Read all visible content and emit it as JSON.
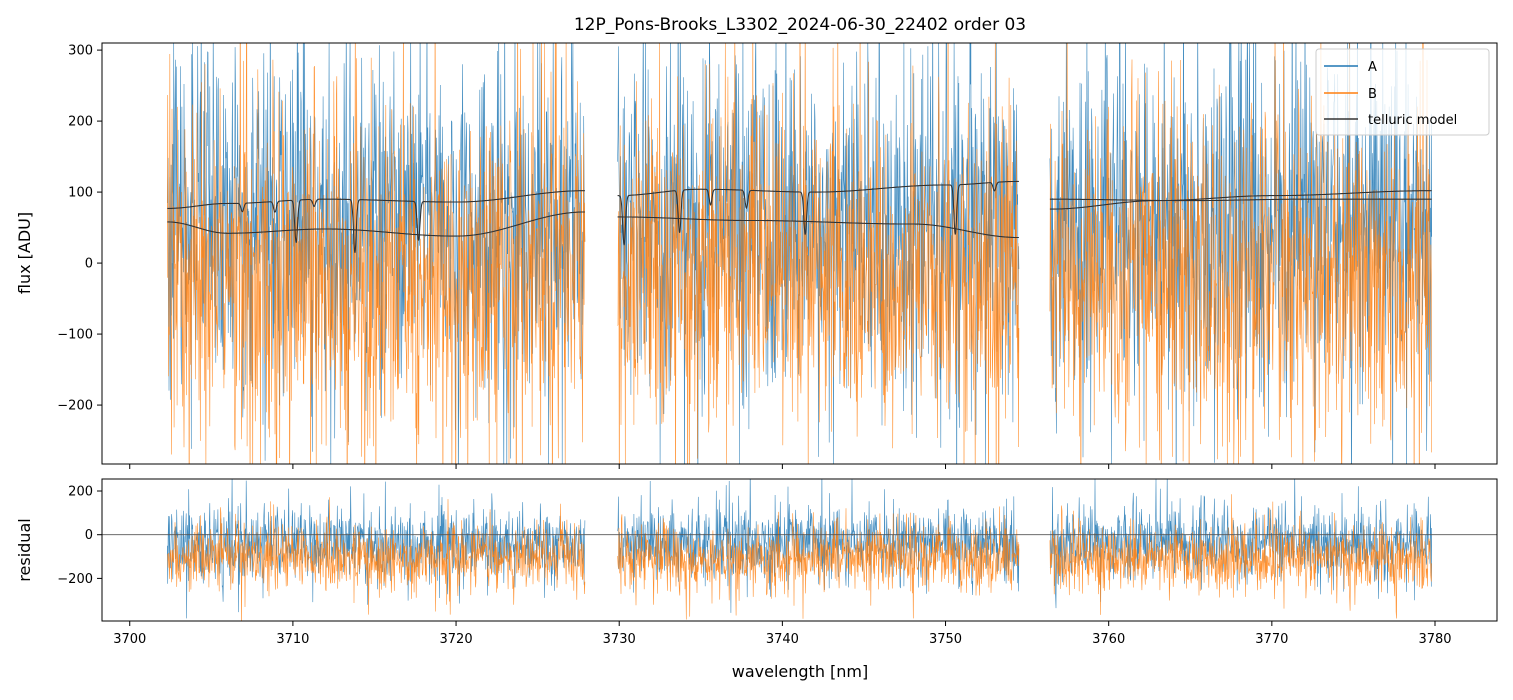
{
  "chart_data": [
    {
      "type": "line",
      "panel": "top",
      "title": "12P_Pons-Brooks_L3302_2024-06-30_22402  order 03",
      "xlabel": "",
      "ylabel": "flux [ADU]",
      "xlim": [
        3698.3,
        3783.8
      ],
      "ylim": [
        -283,
        310
      ],
      "xticks": [
        3700,
        3710,
        3720,
        3730,
        3740,
        3750,
        3760,
        3770,
        3780
      ],
      "yticks": [
        -200,
        -100,
        0,
        100,
        200,
        300
      ],
      "ytick_labels": [
        "−200",
        "−100",
        "0",
        "100",
        "200",
        "300"
      ],
      "segments": [
        [
          3702.3,
          3727.9
        ],
        [
          3729.9,
          3754.5
        ],
        [
          3756.4,
          3779.8
        ]
      ],
      "legend": {
        "position": "top-right",
        "entries": [
          "A",
          "B",
          "telluric model"
        ]
      },
      "series": [
        {
          "name": "A",
          "color": "#1f77b4",
          "kind": "noisy-spectrum",
          "mean": 60,
          "spread": 150
        },
        {
          "name": "B",
          "color": "#ff7f0e",
          "kind": "noisy-spectrum",
          "mean": -20,
          "spread": 150
        },
        {
          "name": "telluric model (A)",
          "color": "#333333",
          "kind": "model",
          "continuum": [
            {
              "segment": 0,
              "x": [
                3702.3,
                3706,
                3712,
                3720,
                3727.9
              ],
              "y": [
                77,
                84,
                90,
                86,
                102
              ]
            },
            {
              "segment": 1,
              "x": [
                3729.9,
                3735,
                3742,
                3750,
                3754.5
              ],
              "y": [
                95,
                104,
                100,
                110,
                115
              ]
            },
            {
              "segment": 2,
              "x": [
                3756.4,
                3765,
                3772,
                3779.8
              ],
              "y": [
                90,
                88,
                90,
                90
              ]
            }
          ],
          "absorption_lines": [
            {
              "center": 3710.2,
              "depth": 60
            },
            {
              "center": 3713.8,
              "depth": 75
            },
            {
              "center": 3717.7,
              "depth": 55
            },
            {
              "center": 3730.3,
              "depth": 70
            },
            {
              "center": 3733.7,
              "depth": 60
            },
            {
              "center": 3741.4,
              "depth": 60
            },
            {
              "center": 3750.6,
              "depth": 70
            },
            {
              "center": 3706.9,
              "depth": 12
            },
            {
              "center": 3708.9,
              "depth": 15
            },
            {
              "center": 3711.3,
              "depth": 10
            },
            {
              "center": 3735.6,
              "depth": 22
            },
            {
              "center": 3737.8,
              "depth": 25
            },
            {
              "center": 3753.0,
              "depth": 12
            }
          ]
        },
        {
          "name": "telluric model (B)",
          "color": "#333333",
          "kind": "model",
          "continuum": [
            {
              "segment": 0,
              "x": [
                3702.3,
                3706,
                3712,
                3720,
                3727.9
              ],
              "y": [
                58,
                42,
                48,
                38,
                72
              ]
            },
            {
              "segment": 1,
              "x": [
                3729.9,
                3738,
                3748,
                3754.5
              ],
              "y": [
                65,
                60,
                55,
                36
              ]
            },
            {
              "segment": 2,
              "x": [
                3756.4,
                3763,
                3770,
                3779.8
              ],
              "y": [
                76,
                88,
                95,
                102
              ]
            }
          ]
        }
      ]
    },
    {
      "type": "line",
      "panel": "bottom",
      "xlabel": "wavelength [nm]",
      "ylabel": "residual",
      "xlim": [
        3698.3,
        3783.8
      ],
      "ylim": [
        -395,
        255
      ],
      "xticks": [
        3700,
        3710,
        3720,
        3730,
        3740,
        3750,
        3760,
        3770,
        3780
      ],
      "yticks": [
        -200,
        0,
        200
      ],
      "ytick_labels": [
        "−200",
        "0",
        "200"
      ],
      "zero_line": 0,
      "series": [
        {
          "name": "A",
          "color": "#1f77b4",
          "kind": "noisy-spectrum",
          "mean": -40,
          "spread": 105
        },
        {
          "name": "B",
          "color": "#ff7f0e",
          "kind": "noisy-spectrum",
          "mean": -110,
          "spread": 95
        }
      ]
    }
  ]
}
